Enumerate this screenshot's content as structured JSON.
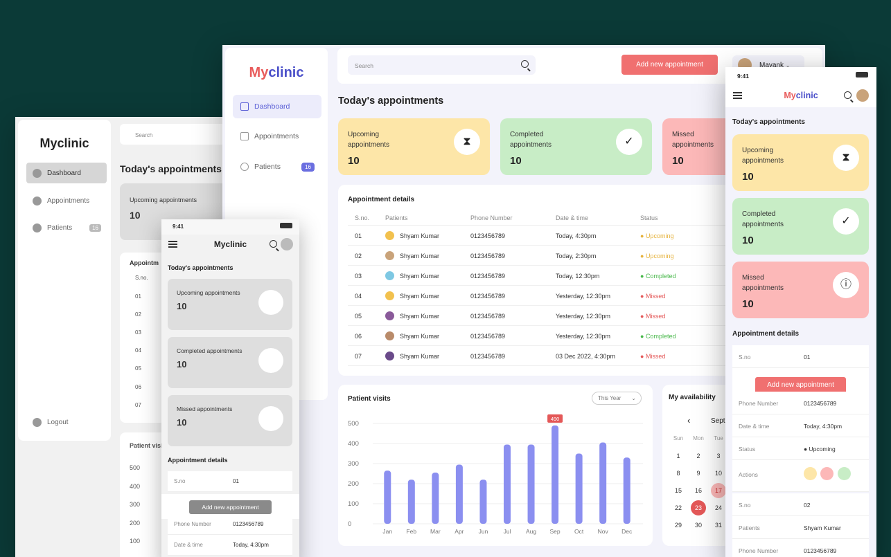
{
  "wireframe_desktop": {
    "logo": "Myclinic",
    "nav": [
      "Dashboard",
      "Appointments",
      "Patients"
    ],
    "patients_badge": "16",
    "logout": "Logout",
    "search_placeholder": "Search",
    "heading": "Today's appointments",
    "upcoming_label": "Upcoming appointments",
    "upcoming_count": "10",
    "table_title": "Appointm",
    "col_sno": "S.no.",
    "rows": [
      "01",
      "02",
      "03",
      "04",
      "05",
      "06",
      "07"
    ],
    "patient_visits": "Patient visi",
    "y_ticks": [
      "500",
      "400",
      "300",
      "200",
      "100"
    ]
  },
  "wireframe_phone": {
    "time": "9:41",
    "title": "Myclinic",
    "heading": "Today's appointments",
    "cards": [
      {
        "label": "Upcoming appointments",
        "count": "10"
      },
      {
        "label": "Completed appointments",
        "count": "10"
      },
      {
        "label": "Missed appointments",
        "count": "10"
      }
    ],
    "details_title": "Appointment details",
    "rows": [
      {
        "k": "S.no",
        "v": "01"
      },
      {
        "k": "Phone Number",
        "v": "0123456789"
      },
      {
        "k": "Date & time",
        "v": "Today, 4:30pm"
      }
    ],
    "add_button": "Add new appointment"
  },
  "main": {
    "logo_a": "My",
    "logo_b": "clinic",
    "nav": [
      {
        "label": "Dashboard",
        "icon": "grid-icon"
      },
      {
        "label": "Appointments",
        "icon": "calendar-icon"
      },
      {
        "label": "Patients",
        "icon": "people-icon"
      }
    ],
    "patients_badge": "16",
    "search_placeholder": "Search",
    "add_button": "Add new appointment",
    "user_name": "Mayank",
    "heading": "Today's appointments",
    "stats": [
      {
        "label_1": "Upcoming",
        "label_2": "appointments",
        "count": "10",
        "icon": "hourglass-icon",
        "color": "#fde6a8"
      },
      {
        "label_1": "Completed",
        "label_2": "appointments",
        "count": "10",
        "icon": "check-circle-icon",
        "color": "#c8edc6"
      },
      {
        "label_1": "Missed",
        "label_2": "appointments",
        "count": "10",
        "icon": "info-icon",
        "color": "#fcb8b8"
      }
    ],
    "table": {
      "title": "Appointment details",
      "headers": [
        "S.no.",
        "Patients",
        "Phone Number",
        "Date & time",
        "Status"
      ],
      "rows": [
        {
          "sno": "01",
          "patient": "Shyam Kumar",
          "phone": "0123456789",
          "datetime": "Today, 4:30pm",
          "status": "Upcoming"
        },
        {
          "sno": "02",
          "patient": "Shyam Kumar",
          "phone": "0123456789",
          "datetime": "Today, 2:30pm",
          "status": "Upcoming"
        },
        {
          "sno": "03",
          "patient": "Shyam Kumar",
          "phone": "0123456789",
          "datetime": "Today, 12:30pm",
          "status": "Completed"
        },
        {
          "sno": "04",
          "patient": "Shyam Kumar",
          "phone": "0123456789",
          "datetime": "Yesterday, 12:30pm",
          "status": "Missed"
        },
        {
          "sno": "05",
          "patient": "Shyam Kumar",
          "phone": "0123456789",
          "datetime": "Yesterday, 12:30pm",
          "status": "Missed"
        },
        {
          "sno": "06",
          "patient": "Shyam Kumar",
          "phone": "0123456789",
          "datetime": "Yesterday, 12:30pm",
          "status": "Completed"
        },
        {
          "sno": "07",
          "patient": "Shyam Kumar",
          "phone": "0123456789",
          "datetime": "03 Dec 2022, 4:30pm",
          "status": "Missed"
        }
      ]
    },
    "chart_title": "Patient visits",
    "chart_range": "This Year",
    "availability": {
      "title": "My availability",
      "month": "Sept",
      "weekdays": [
        "Sun",
        "Mon",
        "Tue"
      ],
      "days": [
        [
          "1",
          "2",
          "3"
        ],
        [
          "8",
          "9",
          "10"
        ],
        [
          "15",
          "16",
          "17"
        ],
        [
          "22",
          "23",
          "24"
        ],
        [
          "29",
          "30",
          "31"
        ]
      ],
      "selected_day": "23",
      "highlighted_day": "17"
    }
  },
  "chart_data": {
    "type": "bar",
    "categories": [
      "Jan",
      "Feb",
      "Mar",
      "Apr",
      "Jun",
      "Jul",
      "Aug",
      "Sep",
      "Oct",
      "Nov",
      "Dec"
    ],
    "values": [
      265,
      220,
      255,
      295,
      220,
      395,
      395,
      490,
      350,
      405,
      330
    ],
    "highlight_label": "490",
    "y_ticks": [
      "500",
      "400",
      "300",
      "200",
      "100",
      "0"
    ],
    "ylim": [
      0,
      500
    ],
    "bar_color": "#8b8ff0"
  },
  "right_phone": {
    "time": "9:41",
    "logo_a": "My",
    "logo_b": "clinic",
    "heading": "Today's appointments",
    "stats": [
      {
        "label_1": "Upcoming",
        "label_2": "appointments",
        "count": "10",
        "icon": "hourglass-icon"
      },
      {
        "label_1": "Completed",
        "label_2": "appointments",
        "count": "10",
        "icon": "check-circle-icon"
      },
      {
        "label_1": "Missed",
        "label_2": "appointments",
        "count": "10",
        "icon": "info-icon"
      }
    ],
    "details_title": "Appointment details",
    "rows": [
      {
        "k": "S.no",
        "v": "01"
      },
      {
        "k": "Phone Number",
        "v": "0123456789"
      },
      {
        "k": "Date & time",
        "v": "Today, 4:30pm"
      },
      {
        "k": "Status",
        "v": "Upcoming"
      },
      {
        "k": "Actions",
        "v": ""
      }
    ],
    "rows2": [
      {
        "k": "S.no",
        "v": "02"
      },
      {
        "k": "Patients",
        "v": "Shyam Kumar"
      },
      {
        "k": "Phone Number",
        "v": "0123456789"
      }
    ],
    "add_button": "Add new appointment"
  }
}
